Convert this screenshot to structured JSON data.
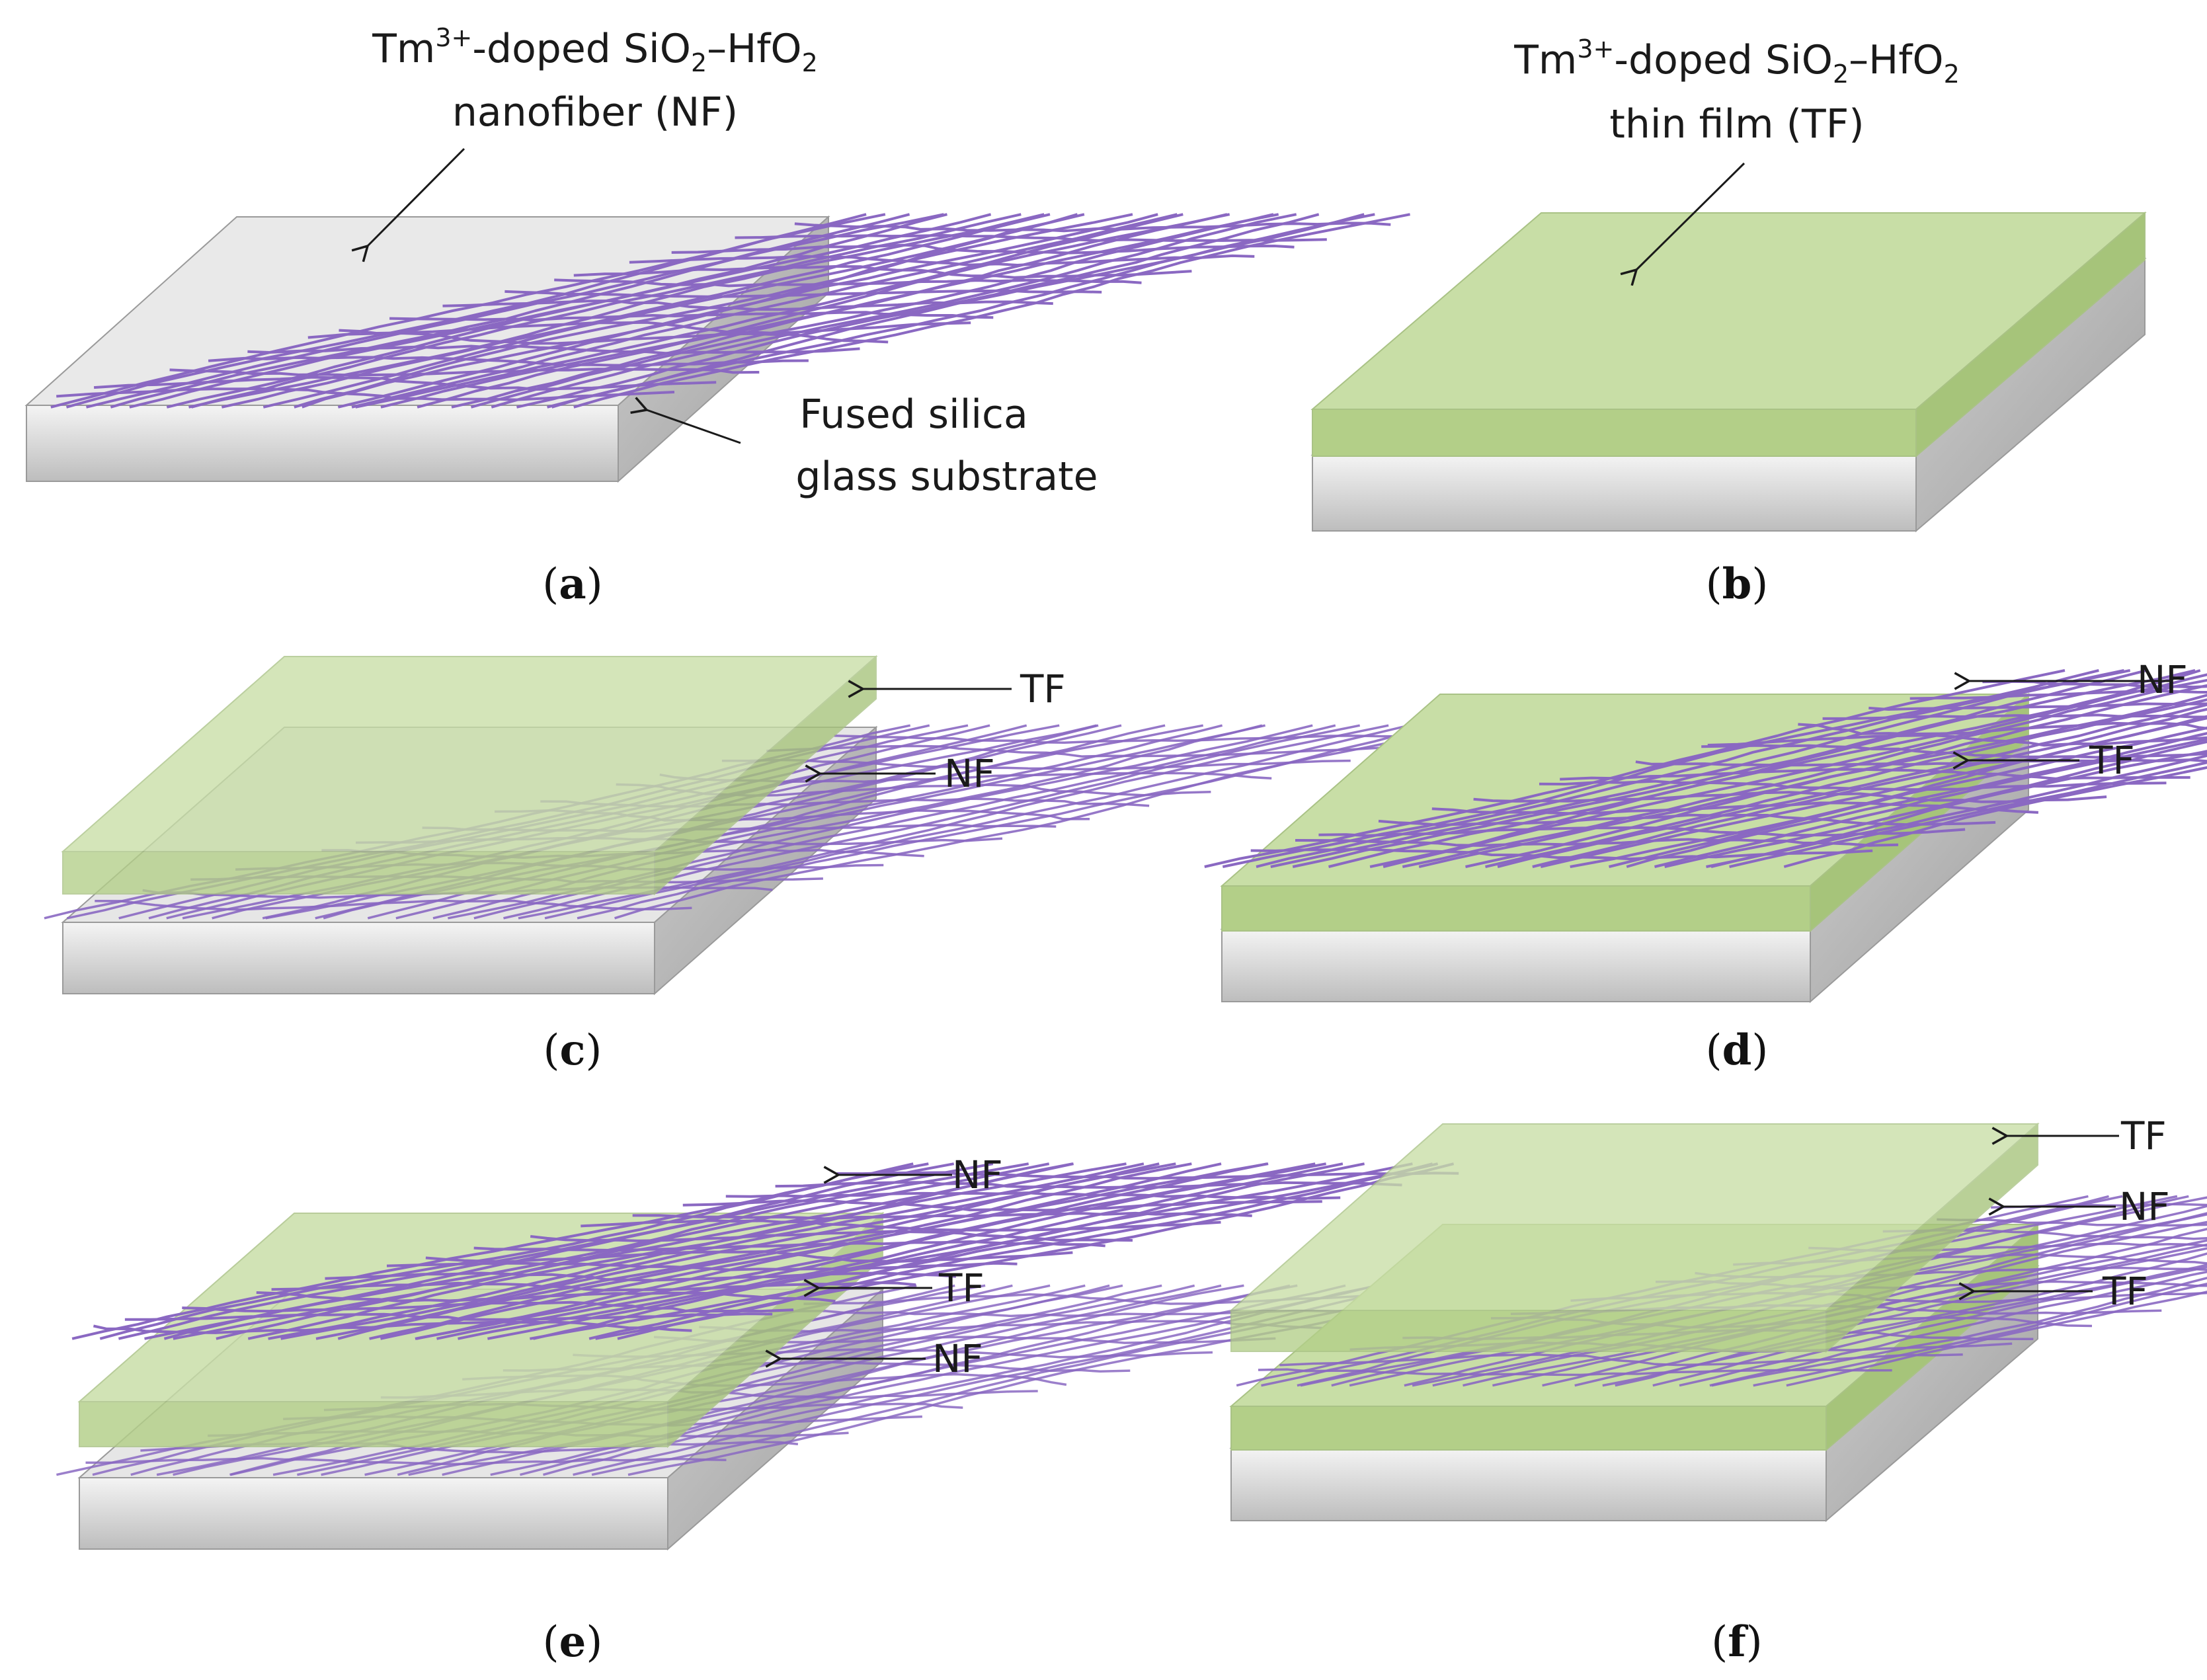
{
  "figure": {
    "colors": {
      "nanofiber": "#8a68c2",
      "film_top": "#c6dca4",
      "film_front": "#b2ce86",
      "substrate_top": "#e6e6e6",
      "substrate_front": "#d2d2d2",
      "arrow": "#1a1a1a"
    },
    "panel_a": {
      "caption_letter": "a",
      "title_line1_prefix": "Tm",
      "title_line1_sup": "3+",
      "title_line1_mid": "-doped SiO",
      "title_line1_sub1": "2",
      "title_line1_dash": "–HfO",
      "title_line1_sub2": "2",
      "title_line2": "nanofiber (NF)",
      "substrate_line1": "Fused silica",
      "substrate_line2": "glass substrate"
    },
    "panel_b": {
      "caption_letter": "b",
      "title_line1_prefix": "Tm",
      "title_line1_sup": "3+",
      "title_line1_mid": "-doped SiO",
      "title_line1_sub1": "2",
      "title_line1_dash": "–HfO",
      "title_line1_sub2": "2",
      "title_line2": "thin film (TF)"
    },
    "panel_c": {
      "caption_letter": "c",
      "labels": [
        "TF",
        "NF"
      ]
    },
    "panel_d": {
      "caption_letter": "d",
      "labels": [
        "NF",
        "TF"
      ]
    },
    "panel_e": {
      "caption_letter": "e",
      "labels": [
        "NF",
        "TF",
        "NF"
      ]
    },
    "panel_f": {
      "caption_letter": "f",
      "labels": [
        "TF",
        "NF",
        "TF"
      ]
    }
  }
}
